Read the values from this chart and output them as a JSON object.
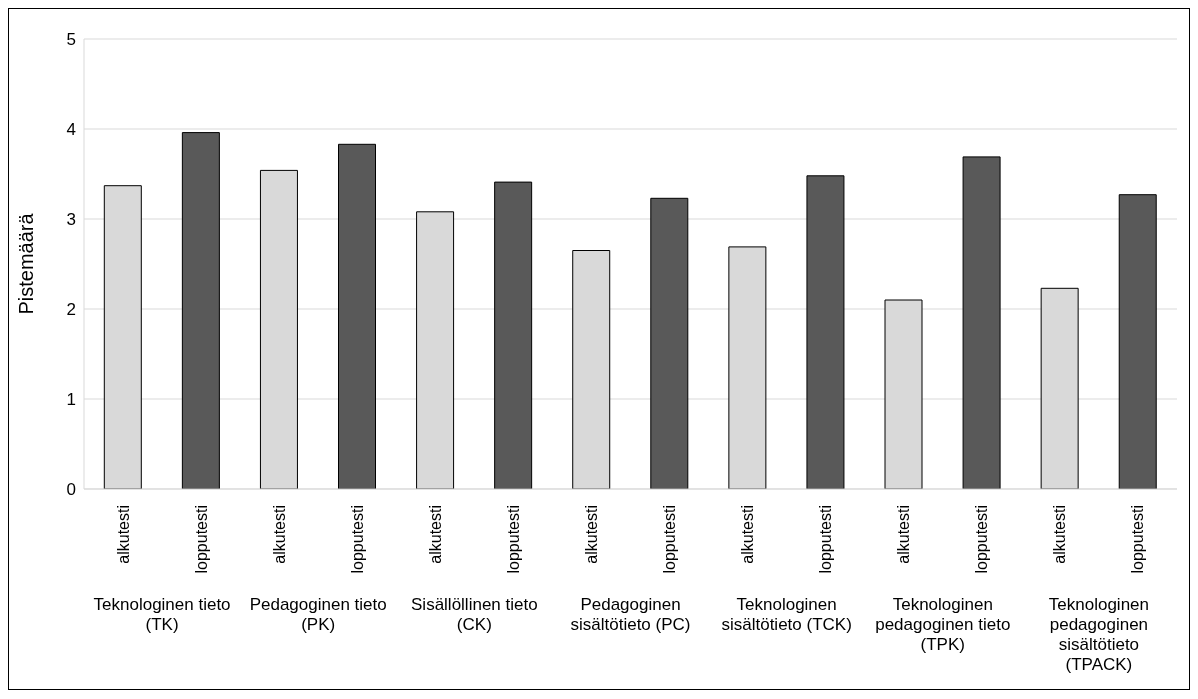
{
  "chart_data": {
    "type": "bar",
    "ylabel": "Pistemäärä",
    "categories": [
      "alkutesti",
      "lopputesti",
      "alkutesti",
      "lopputesti",
      "alkutesti",
      "lopputesti",
      "alkutesti",
      "lopputesti",
      "alkutesti",
      "lopputesti",
      "alkutesti",
      "lopputesti",
      "alkutesti",
      "lopputesti"
    ],
    "values": [
      3.37,
      3.96,
      3.54,
      3.83,
      3.08,
      3.41,
      2.65,
      3.23,
      2.69,
      3.48,
      2.1,
      3.69,
      2.23,
      3.27
    ],
    "colors": [
      "#d9d9d9",
      "#595959",
      "#d9d9d9",
      "#595959",
      "#d9d9d9",
      "#595959",
      "#d9d9d9",
      "#595959",
      "#d9d9d9",
      "#595959",
      "#d9d9d9",
      "#595959",
      "#d9d9d9",
      "#595959"
    ],
    "ylim": [
      0,
      5
    ],
    "yticks": [
      0,
      1,
      2,
      3,
      4,
      5
    ],
    "grid": "y",
    "legend": false,
    "annotations": [
      "Teknologinen tieto (TK)",
      "Pedagoginen tieto (PK)",
      "Sisällöllinen tieto (CK)",
      "Pedagoginen sisältötieto (PC)",
      "Teknologinen sisältötieto (TCK)",
      "Teknologinen pedagoginen tieto (TPK)",
      "Teknologinen pedagoginen sisältötieto (TPACK)"
    ]
  }
}
